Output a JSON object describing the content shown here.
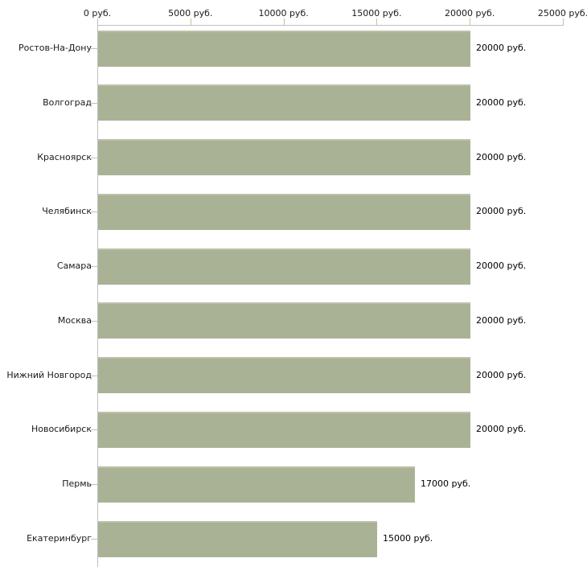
{
  "chart_data": {
    "type": "bar",
    "orientation": "horizontal",
    "title": "",
    "xlabel": "",
    "ylabel": "",
    "unit": "руб.",
    "xlim": [
      0,
      25000
    ],
    "grid": false,
    "legend": false,
    "x_ticks": [
      0,
      5000,
      10000,
      15000,
      20000,
      25000
    ],
    "x_tick_labels": [
      "0 руб.",
      "5000 руб.",
      "10000 руб.",
      "15000 руб.",
      "20000 руб.",
      "25000 руб."
    ],
    "categories": [
      "Ростов-На-Дону",
      "Волгоград",
      "Красноярск",
      "Челябинск",
      "Самара",
      "Москва",
      "Нижний Новгород",
      "Новосибирск",
      "Пермь",
      "Екатеринбург"
    ],
    "values": [
      20000,
      20000,
      20000,
      20000,
      20000,
      20000,
      20000,
      20000,
      17000,
      15000
    ],
    "value_labels": [
      "20000 руб.",
      "20000 руб.",
      "20000 руб.",
      "20000 руб.",
      "20000 руб.",
      "20000 руб.",
      "20000 руб.",
      "20000 руб.",
      "17000 руб.",
      "15000 руб."
    ],
    "colors": {
      "bar_fill": "#aab296",
      "bar_top_highlight": "#bcc1a9",
      "axis_line": "#c0c0c0",
      "tick_mark": "#c6c39a",
      "background": "#ffffff",
      "text": "#1a1a1a"
    }
  }
}
